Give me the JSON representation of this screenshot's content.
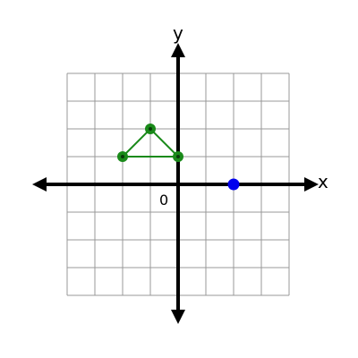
{
  "labels": {
    "x_axis": "x",
    "y_axis": "y",
    "origin": "0"
  },
  "chart_data": {
    "type": "scatter",
    "grid": true,
    "xlim": [
      -4,
      4
    ],
    "ylim": [
      -4,
      4
    ],
    "grid_step": 1,
    "triangle": {
      "vertices": [
        {
          "x": -2,
          "y": 1
        },
        {
          "x": -1,
          "y": 2
        },
        {
          "x": 0,
          "y": 1
        }
      ],
      "color": "#1a8a1a"
    },
    "point": {
      "x": 2,
      "y": 0,
      "color": "#0000ee"
    }
  },
  "colors": {
    "grid": "#999999",
    "axis": "#000000",
    "triangle_stroke": "#1a8a1a",
    "vertex_fill": "#1a8a1a",
    "vertex_dot": "#0a3a0a",
    "point_fill": "#0000ee"
  }
}
